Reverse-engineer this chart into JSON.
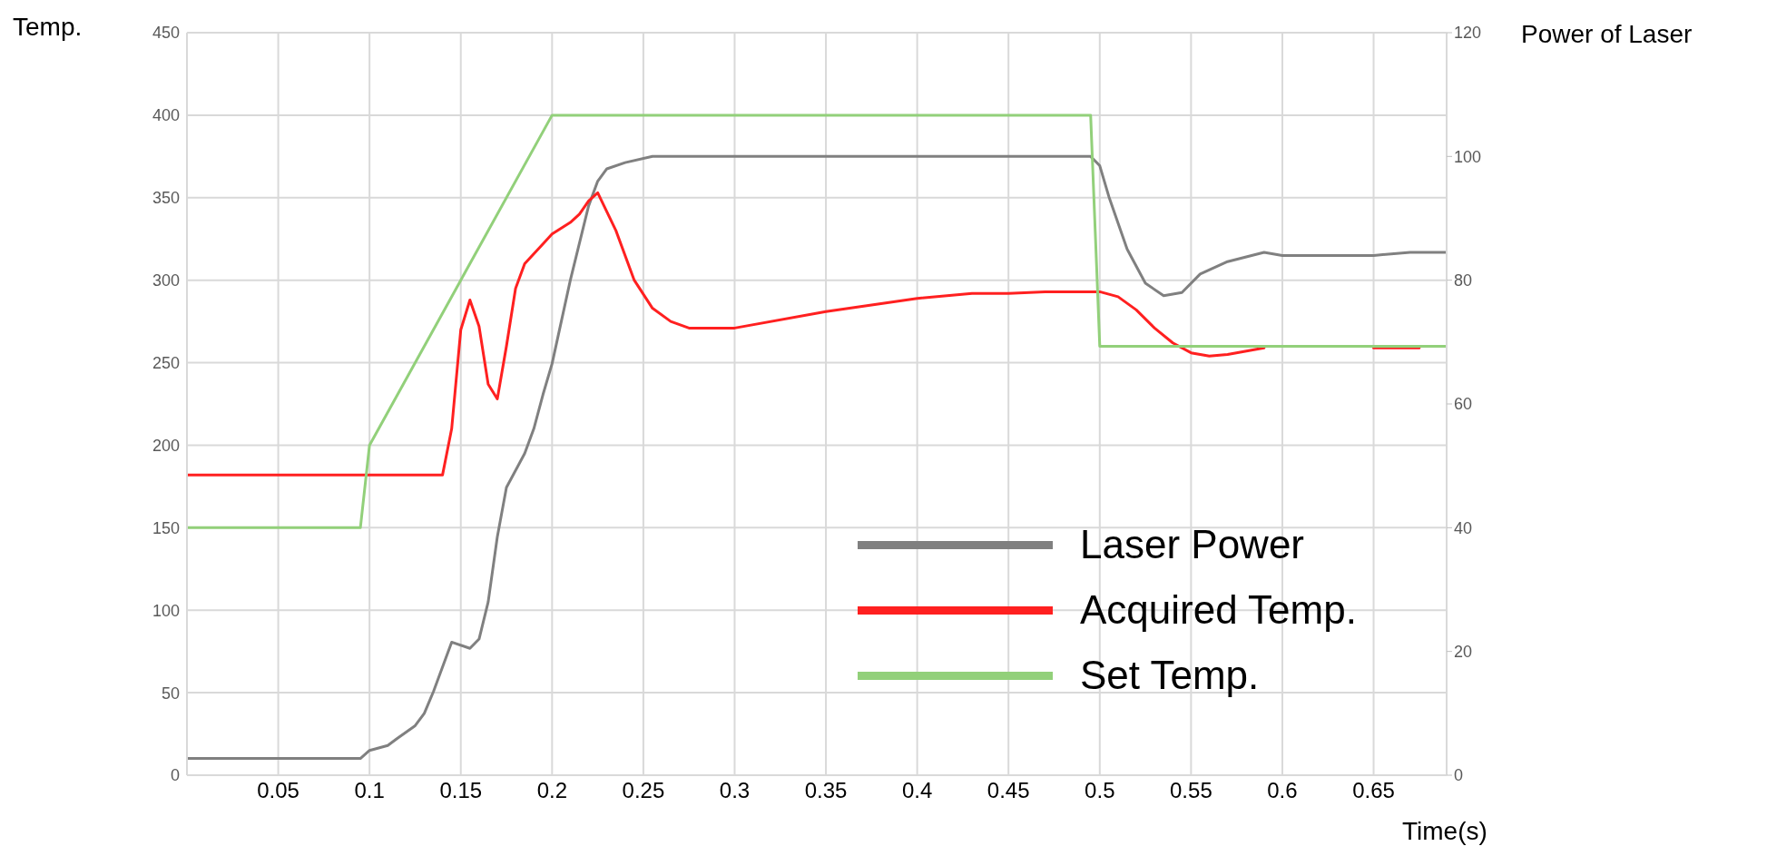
{
  "chart_data": {
    "type": "line",
    "xlabel": "Time(s)",
    "ylabel": "Temp.",
    "y2label": "Power of Laser",
    "xlim": [
      0,
      0.69
    ],
    "xticks": [
      0.05,
      0.1,
      0.15,
      0.2,
      0.25,
      0.3,
      0.35,
      0.4,
      0.45,
      0.5,
      0.55,
      0.6,
      0.65
    ],
    "ylim": [
      0,
      450
    ],
    "yticks": [
      0,
      50,
      100,
      150,
      200,
      250,
      300,
      350,
      400,
      450
    ],
    "y2lim": [
      0,
      120
    ],
    "y2ticks": [
      0,
      20,
      40,
      60,
      80,
      100,
      120
    ],
    "grid": true,
    "legend": "bottom right",
    "marker": "none",
    "line_style": "solid",
    "series": [
      {
        "name": "Laser Power",
        "color": "#808080",
        "axis": "y2",
        "x": [
          0,
          0.095,
          0.1,
          0.11,
          0.115,
          0.125,
          0.13,
          0.135,
          0.145,
          0.155,
          0.16,
          0.165,
          0.17,
          0.175,
          0.185,
          0.19,
          0.195,
          0.2,
          0.21,
          0.22,
          0.225,
          0.23,
          0.24,
          0.255,
          0.495,
          0.5,
          0.505,
          0.515,
          0.525,
          0.535,
          0.545,
          0.555,
          0.57,
          0.59,
          0.6,
          0.62,
          0.65,
          0.67,
          0.69
        ],
        "values": [
          2.7,
          2.7,
          4,
          4.8,
          5.9,
          8,
          10,
          13.5,
          21.5,
          20.5,
          22,
          28,
          38.5,
          46.5,
          52,
          56,
          61.5,
          66.5,
          80,
          92,
          96,
          98,
          99,
          100,
          100,
          98.5,
          93.5,
          85,
          79.5,
          77.5,
          78,
          81,
          83,
          84.5,
          84,
          84,
          84,
          84.5,
          84.5
        ]
      },
      {
        "name": "Acquired Temp.",
        "color": "#ff2020",
        "x": [
          0,
          0.14,
          0.145,
          0.15,
          0.155,
          0.16,
          0.165,
          0.17,
          0.175,
          0.18,
          0.185,
          0.195,
          0.2,
          0.21,
          0.215,
          0.22,
          0.225,
          0.235,
          0.245,
          0.255,
          0.265,
          0.275,
          0.3,
          0.35,
          0.4,
          0.43,
          0.45,
          0.47,
          0.5,
          0.51,
          0.52,
          0.53,
          0.54,
          0.55,
          0.56,
          0.57,
          0.59,
          0.6,
          0.625,
          0.65,
          0.675
        ],
        "values": [
          182,
          182,
          210,
          270,
          288,
          272,
          237,
          228,
          260,
          295,
          310,
          322,
          328,
          335,
          340,
          348,
          353,
          330,
          300,
          283,
          275,
          271,
          271,
          281,
          289,
          292,
          292,
          293,
          293,
          290,
          282,
          271,
          262,
          256,
          254,
          255,
          259,
          null,
          null,
          259,
          259
        ]
      },
      {
        "name": "Set Temp.",
        "color": "#92d07a",
        "x": [
          0,
          0.095,
          0.1,
          0.2,
          0.495,
          0.5,
          0.69
        ],
        "values": [
          150,
          150,
          200,
          400,
          400,
          260,
          260
        ]
      }
    ]
  }
}
